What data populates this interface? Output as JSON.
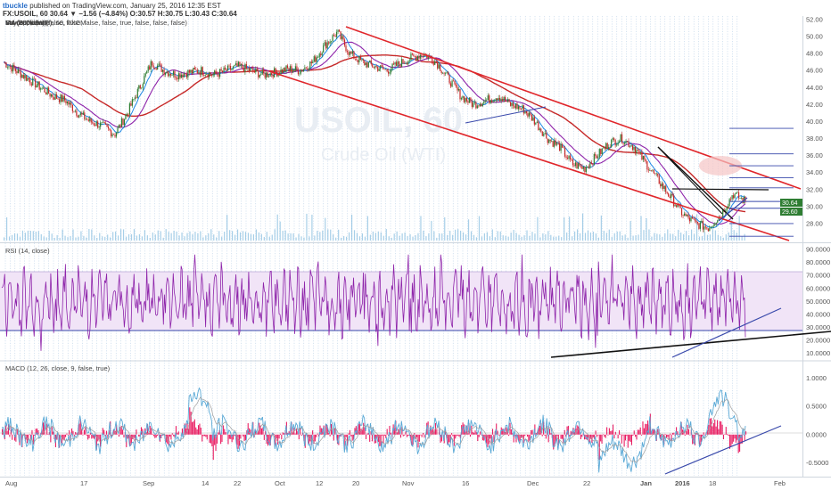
{
  "header": {
    "author": "tbuckle",
    "published": "published on TradingView.com, January 25, 2016 12:35 EST",
    "symbol_line": "FX:USOIL, 60  30.64 ▼ −1.56 (−4.84%) O:30.57 H:30.75 L:30.43 C:30.64"
  },
  "price_pane": {
    "labels": [
      "Crude Oil (WTI), 60, FXCM",
      "Vol (20, false)",
      "Buy Sell v3.4 (false, false, false, false, true, false, false, false)",
      "MA (200, close)",
      "MA (50, close)",
      "MA (8, close)",
      "MA (8, close)"
    ],
    "watermark_symbol": "USOIL, 60",
    "watermark_name": "Crude Oil (WTI)",
    "last_price_label": "30.64",
    "second_price_label": "29.60"
  },
  "rsi_pane": {
    "label": "RSI (14, close)"
  },
  "macd_pane": {
    "label": "MACD (12, 26, close, 9, false, true)"
  },
  "chart_data": [
    {
      "type": "line",
      "title": "FX:USOIL, 60",
      "x_ticks": [
        "Aug",
        "17",
        "Sep",
        "14",
        "22",
        "Oct",
        "12",
        "20",
        "Nov",
        "16",
        "Dec",
        "22",
        "Jan",
        "2016",
        "18",
        "Feb"
      ],
      "y_ticks": [
        "52.00",
        "50.00",
        "48.00",
        "46.00",
        "44.00",
        "42.00",
        "40.00",
        "38.00",
        "36.00",
        "34.00",
        "32.00",
        "30.00",
        "28.00"
      ],
      "ylim": [
        26,
        52
      ],
      "series": [
        {
          "values": [
            47,
            46,
            45,
            44,
            43,
            42.5,
            41,
            40,
            39.5,
            38.5,
            41,
            44,
            47,
            46,
            45.5,
            45.8,
            46,
            45.5,
            46,
            46.5,
            46,
            45.5,
            45.8,
            46.2,
            46,
            47,
            49,
            50.5,
            48,
            47,
            46.5,
            46,
            46.8,
            47.5,
            48,
            47,
            45,
            43,
            42,
            42.5,
            43,
            42,
            41.5,
            40,
            38,
            37,
            35,
            34.5,
            36,
            37.5,
            38,
            37,
            35,
            33,
            31,
            29,
            28,
            27.5,
            29,
            31.5,
            30.6
          ]
        }
      ],
      "current_price": 30.64
    },
    {
      "type": "line",
      "title": "RSI (14, close)",
      "y_ticks": [
        "90.0000",
        "80.0000",
        "70.0000",
        "60.0000",
        "50.0000",
        "40.0000",
        "30.0000",
        "20.0000",
        "10.0000"
      ],
      "ylim": [
        5,
        90
      ],
      "band": [
        30,
        70
      ]
    },
    {
      "type": "line",
      "title": "MACD (12, 26, close, 9, false, true)",
      "y_ticks": [
        "1.0000",
        "0.5000",
        "0.0000",
        "-0.5000"
      ],
      "ylim": [
        -0.7,
        1.2
      ]
    }
  ],
  "colors": {
    "channel": "#e0262b",
    "ma200": "#c62828",
    "ma50": "#8e24aa",
    "ma8": "#1e88e5",
    "candle_up": "#2e7d32",
    "candle_down": "#c62828",
    "rsi": "#8e24aa",
    "rsi_band": "#f1e4f7",
    "macd": "#5aa9d6",
    "hist": "#e91e63",
    "volume": "#5fa7d6",
    "price_label": "#2e7d32"
  }
}
